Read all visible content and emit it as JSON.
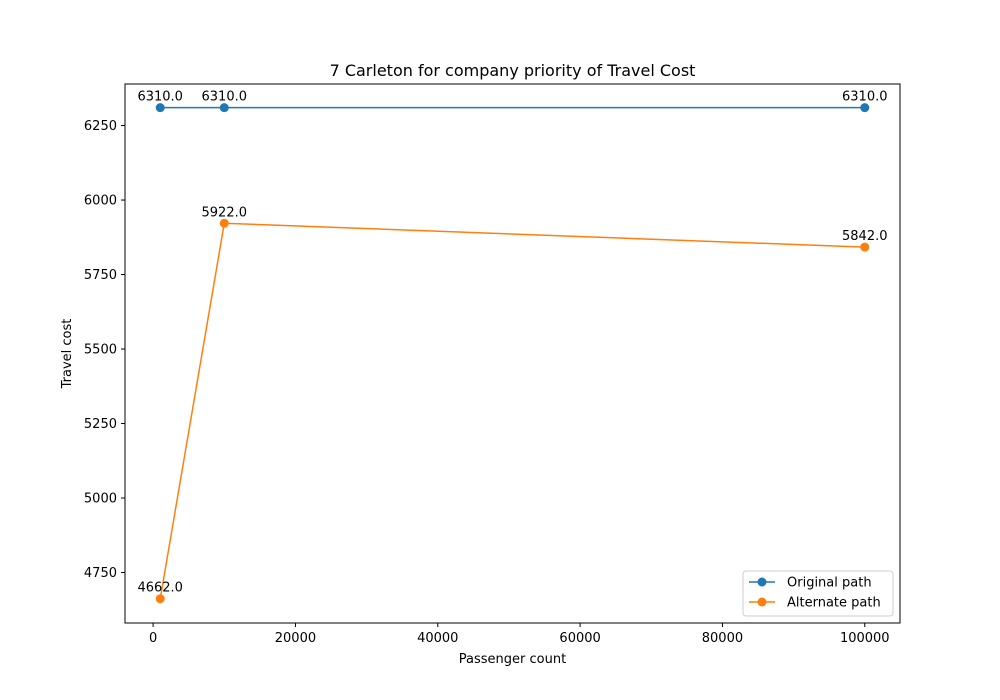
{
  "chart_data": {
    "type": "line",
    "title": "7 Carleton for company priority of Travel Cost",
    "xlabel": "Passenger count",
    "ylabel": "Travel cost",
    "xlim": [
      -3950,
      104950
    ],
    "ylim": [
      4580.6,
      6389.4
    ],
    "xticks": [
      0,
      20000,
      40000,
      60000,
      80000,
      100000
    ],
    "yticks": [
      4750,
      5000,
      5250,
      5500,
      5750,
      6000,
      6250
    ],
    "grid": false,
    "legend_position": "lower-right",
    "series": [
      {
        "name": "Original path",
        "color": "#1f77b4",
        "x": [
          1000,
          10000,
          100000
        ],
        "y": [
          6310.0,
          6310.0,
          6310.0
        ],
        "labels": [
          "6310.0",
          "6310.0",
          "6310.0"
        ]
      },
      {
        "name": "Alternate path",
        "color": "#ff7f0e",
        "x": [
          1000,
          10000,
          100000
        ],
        "y": [
          4662.0,
          5922.0,
          5842.0
        ],
        "labels": [
          "4662.0",
          "5922.0",
          "5842.0"
        ]
      }
    ]
  }
}
